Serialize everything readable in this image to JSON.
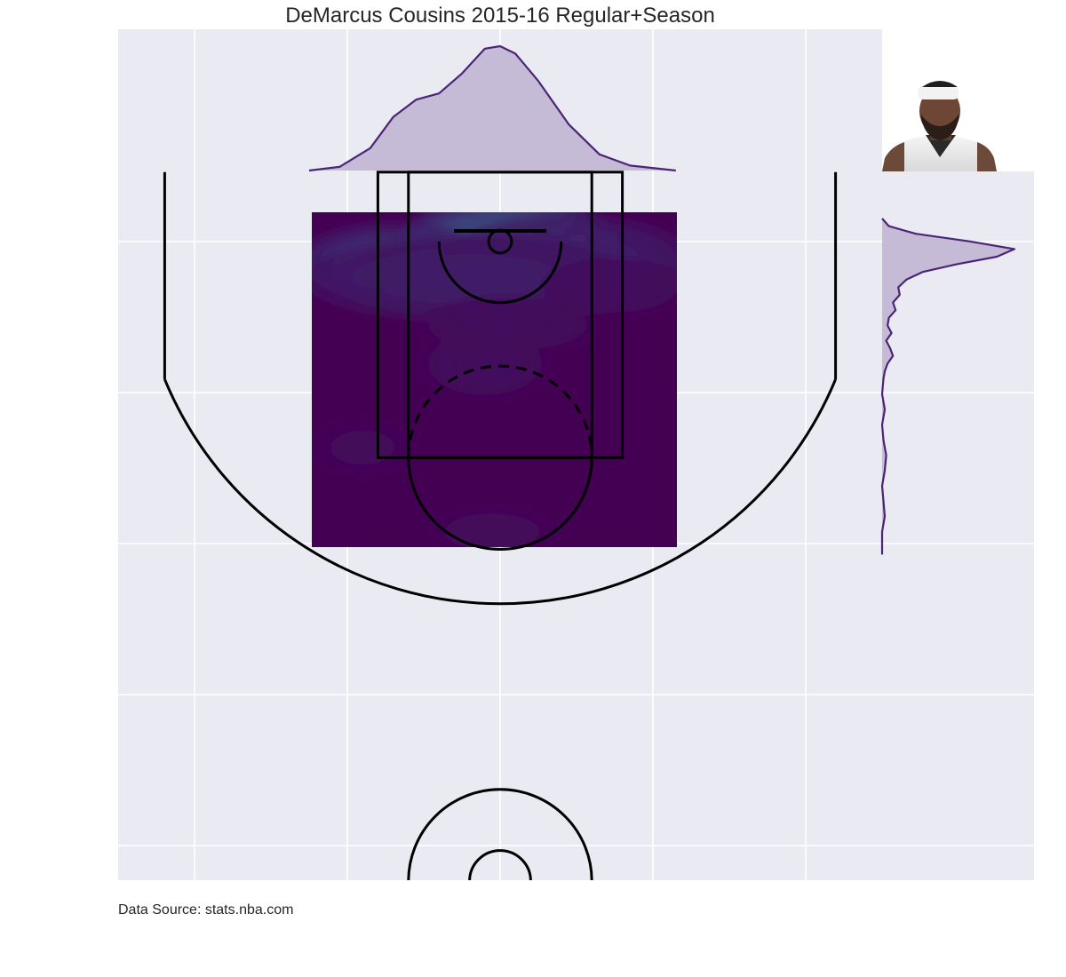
{
  "chart_data": {
    "type": "heatmap",
    "title": "DeMarcus Cousins 2015-16 Regular+Season",
    "source": "Data Source: stats.nba.com",
    "xlabel": "",
    "ylabel": "",
    "xlim": [
      -250,
      250
    ],
    "ylim": [
      422.5,
      -47.5
    ],
    "grid": true,
    "colormap": "viridis",
    "kde_extent": {
      "x": [
        -125,
        115
      ],
      "y": [
        -15,
        205
      ]
    },
    "hotspots": [
      {
        "x": 5,
        "y": 0,
        "weight": 1.0,
        "sx": 30,
        "sy": 12
      },
      {
        "x": -70,
        "y": 15,
        "weight": 0.55,
        "sx": 28,
        "sy": 12
      },
      {
        "x": 45,
        "y": 15,
        "weight": 0.38,
        "sx": 35,
        "sy": 14
      },
      {
        "x": -20,
        "y": 25,
        "weight": 0.35,
        "sx": 45,
        "sy": 12
      },
      {
        "x": 5,
        "y": 55,
        "weight": 0.18,
        "sx": 25,
        "sy": 8
      },
      {
        "x": -10,
        "y": 80,
        "weight": 0.16,
        "sx": 18,
        "sy": 10
      },
      {
        "x": 75,
        "y": 30,
        "weight": 0.15,
        "sx": 20,
        "sy": 8
      },
      {
        "x": -90,
        "y": 135,
        "weight": 0.1,
        "sx": 15,
        "sy": 8
      },
      {
        "x": -5,
        "y": 190,
        "weight": 0.11,
        "sx": 18,
        "sy": 7
      }
    ],
    "x_marginal": {
      "x": [
        -125,
        -105,
        -85,
        -70,
        -55,
        -40,
        -25,
        -10,
        0,
        10,
        25,
        45,
        65,
        85,
        115
      ],
      "density": [
        0.0,
        0.03,
        0.18,
        0.43,
        0.57,
        0.62,
        0.78,
        0.98,
        1.0,
        0.94,
        0.72,
        0.37,
        0.13,
        0.04,
        0.0
      ]
    },
    "y_marginal": {
      "y": [
        -15,
        -10,
        -5,
        0,
        5,
        10,
        15,
        20,
        25,
        30,
        35,
        40,
        45,
        50,
        55,
        60,
        65,
        70,
        75,
        80,
        85,
        90,
        100,
        110,
        120,
        130,
        140,
        150,
        160,
        170,
        180,
        190,
        200,
        205
      ],
      "density": [
        0.0,
        0.05,
        0.25,
        0.65,
        0.98,
        0.85,
        0.55,
        0.3,
        0.18,
        0.12,
        0.13,
        0.08,
        0.1,
        0.05,
        0.04,
        0.07,
        0.03,
        0.06,
        0.08,
        0.04,
        0.02,
        0.01,
        0.0,
        0.02,
        0.0,
        0.01,
        0.03,
        0.02,
        0.0,
        0.01,
        0.02,
        0.0,
        0.0,
        0.0
      ]
    },
    "colors": {
      "panel_bg": "#eaeaf2",
      "grid": "#ffffff",
      "court_line": "#000000",
      "marginal_line": "#4b2477",
      "marginal_fill": "#c5bbd7"
    }
  },
  "photo": {
    "name": "player-headshot"
  }
}
